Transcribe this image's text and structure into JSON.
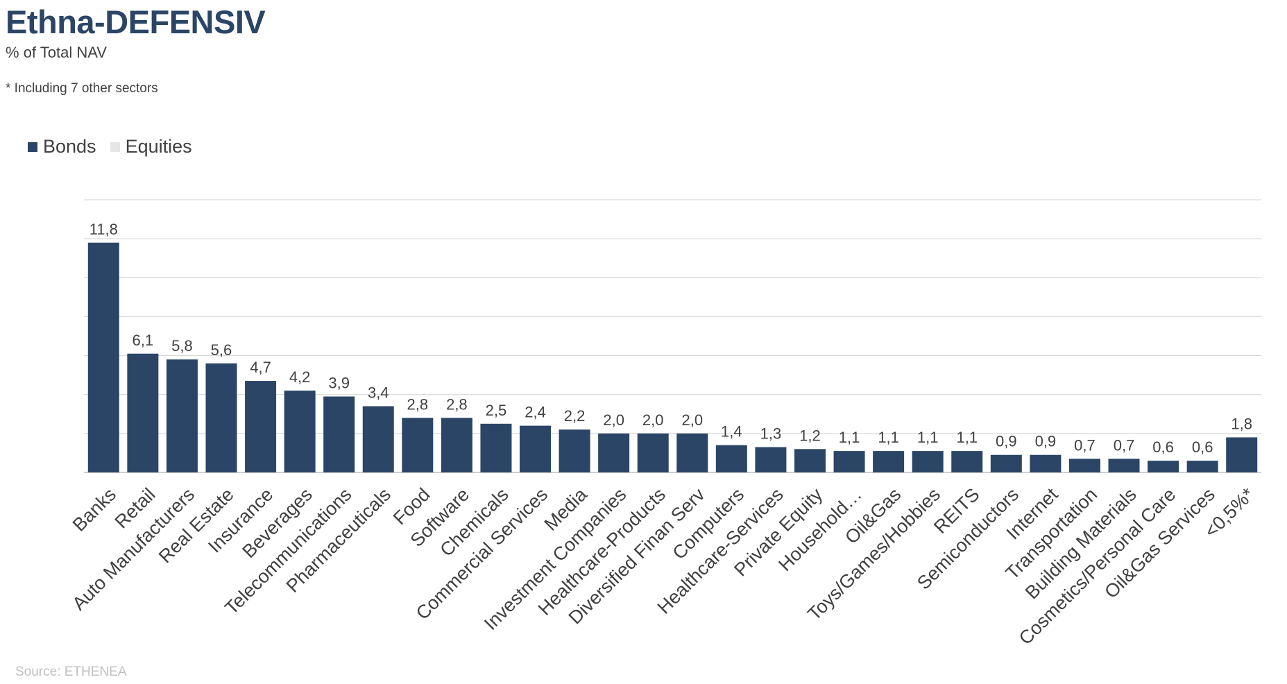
{
  "title": "Ethna-DEFENSIV",
  "subtitle": "% of Total NAV",
  "footnote": "* Including 7 other sectors",
  "source": "Source: ETHENEA",
  "colors": {
    "bonds": "#2b4566",
    "equities": "#e6e6e6",
    "grid": "#d9d9d9"
  },
  "chart_data": {
    "type": "bar",
    "categories": [
      "Banks",
      "Retail",
      "Auto Manufacturers",
      "Real Estate",
      "Insurance",
      "Beverages",
      "Telecommunications",
      "Pharmaceuticals",
      "Food",
      "Software",
      "Chemicals",
      "Commercial Services",
      "Media",
      "Investment Companies",
      "Healthcare-Products",
      "Diversified Finan Serv",
      "Computers",
      "Healthcare-Services",
      "Private Equity",
      "Household…",
      "Oil&Gas",
      "Toys/Games/Hobbies",
      "REITS",
      "Semiconductors",
      "Internet",
      "Transportation",
      "Building Materials",
      "Cosmetics/Personal Care",
      "Oil&Gas Services",
      "<0,5%*"
    ],
    "series": [
      {
        "name": "Bonds",
        "values": [
          11.8,
          6.1,
          5.8,
          5.6,
          4.7,
          4.2,
          3.9,
          3.4,
          2.8,
          2.8,
          2.5,
          2.4,
          2.2,
          2.0,
          2.0,
          2.0,
          1.4,
          1.3,
          1.2,
          1.1,
          1.1,
          1.1,
          1.1,
          0.9,
          0.9,
          0.7,
          0.7,
          0.6,
          0.6,
          1.8
        ]
      },
      {
        "name": "Equities",
        "values": [
          0,
          0,
          0,
          0,
          0,
          0,
          0,
          0,
          0,
          0,
          0,
          0,
          0,
          0,
          0,
          0,
          0,
          0,
          0,
          0,
          0,
          0,
          0,
          0,
          0,
          0,
          0,
          0,
          0,
          0
        ]
      }
    ],
    "data_labels": [
      "11,8",
      "6,1",
      "5,8",
      "5,6",
      "4,7",
      "4,2",
      "3,9",
      "3,4",
      "2,8",
      "2,8",
      "2,5",
      "2,4",
      "2,2",
      "2,0",
      "2,0",
      "2,0",
      "1,4",
      "1,3",
      "1,2",
      "1,1",
      "1,1",
      "1,1",
      "1,1",
      "0,9",
      "0,9",
      "0,7",
      "0,7",
      "0,6",
      "0,6",
      "1,8"
    ],
    "ylim": [
      0,
      14
    ],
    "grid": true,
    "legend": "top-left"
  }
}
